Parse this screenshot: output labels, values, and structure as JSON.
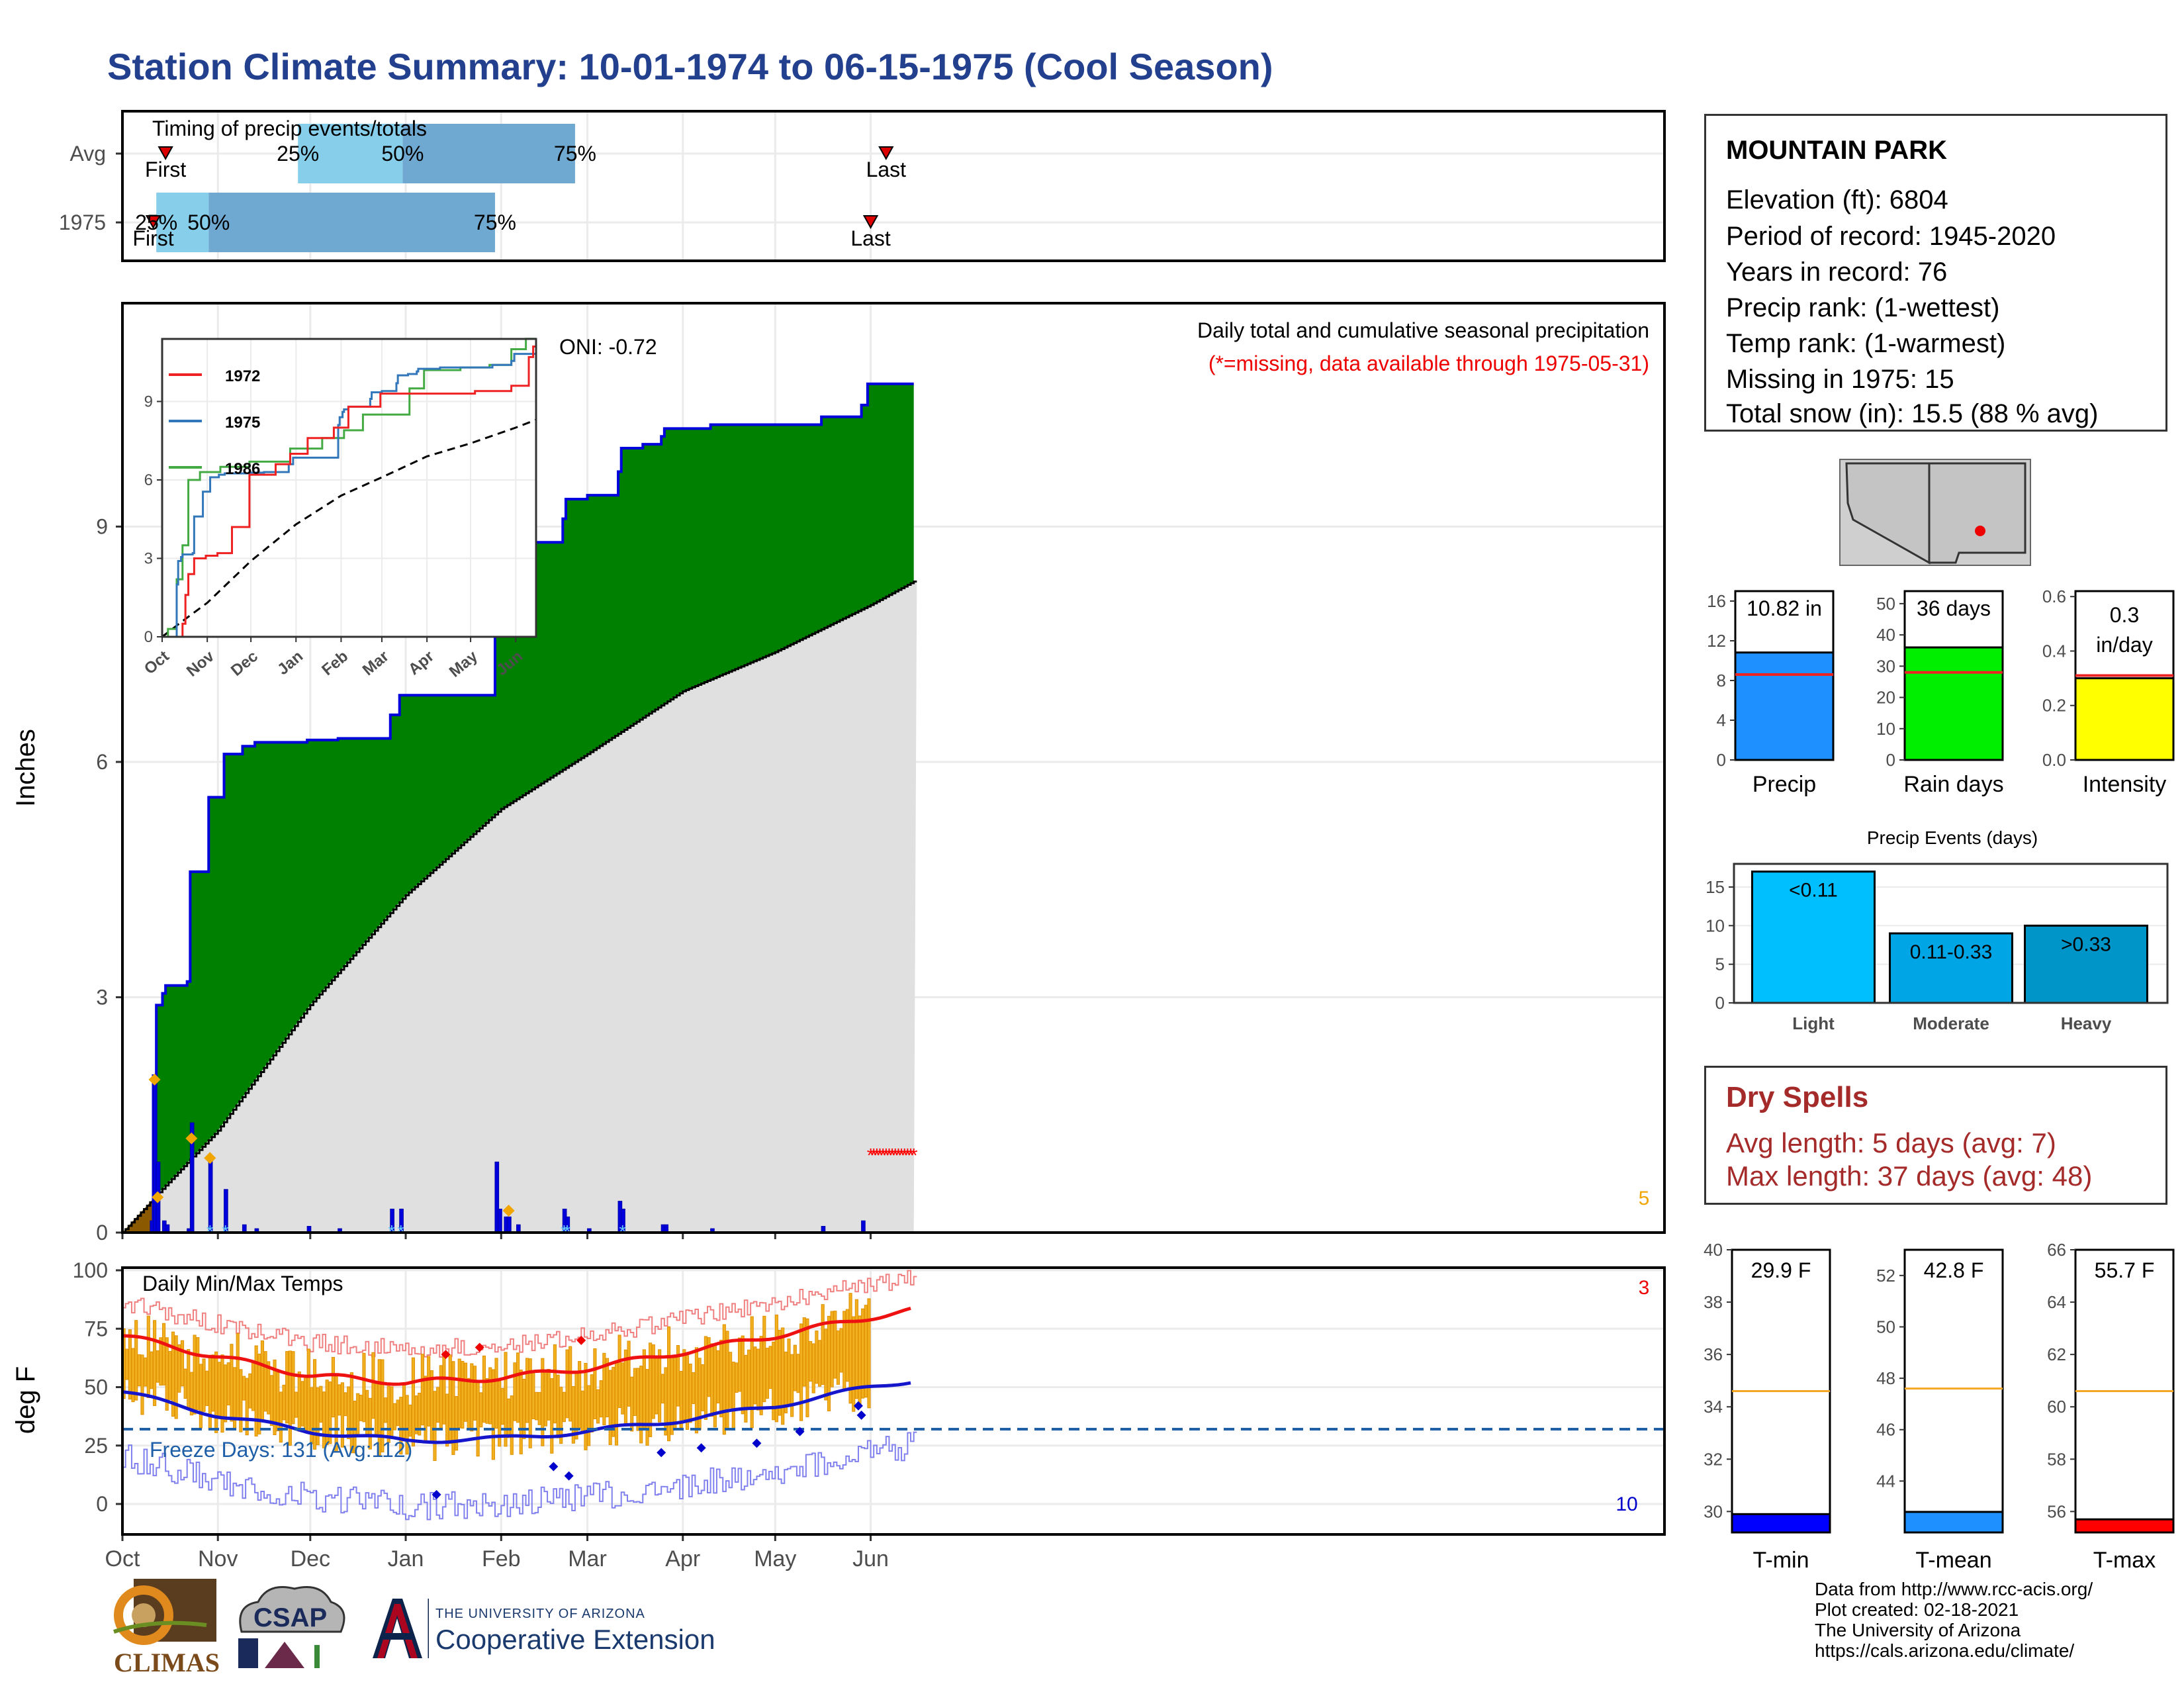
{
  "page_title": "Station Climate Summary: 10-01-1974 to 06-15-1975 (Cool Season)",
  "station": {
    "name": "MOUNTAIN PARK",
    "lines": [
      "Elevation (ft): 6804",
      "Period of record: 1945-2020",
      "Years in record: 76",
      "Precip rank:  (1-wettest)",
      "Temp rank:  (1-warmest)",
      "Missing in 1975: 15",
      "Total snow (in): 15.5 (88 % avg)"
    ]
  },
  "dry_spells": {
    "title": "Dry Spells",
    "avg": "Avg length: 5 days (avg: 7)",
    "max": "Max length: 37 days (avg: 48)"
  },
  "credits": [
    "Data from http://www.rcc-acis.org/",
    "Plot created: 02-18-2021",
    "The University of Arizona",
    "https://cals.arizona.edu/climate/"
  ],
  "logos": {
    "climas": "CLIMAS",
    "csap": "CSAP",
    "ua_top": "THE UNIVERSITY OF ARIZONA",
    "ua_main": "Cooperative Extension"
  },
  "colors": {
    "title": "#23408f",
    "green": "#008000",
    "blue_line": "#0000dd",
    "gray_fill": "#e0e0e0",
    "brown": "#8b5a00",
    "orange": "#f0a500",
    "tmax": "#ee1111",
    "tmin": "#1515cc",
    "light_blue": "#87ceeb",
    "mid_blue": "#6fa8d0",
    "missing_red": "#ff0000"
  },
  "chart_data": [
    {
      "id": "timing",
      "type": "bar",
      "title": "Timing of precip events/totals",
      "rows": [
        {
          "label": "Avg",
          "first": "1974-10-15",
          "q25": "1974-11-27",
          "q50": "1974-12-31",
          "q75": "1975-02-25",
          "last": "1975-06-06",
          "first_text": "First",
          "q25_text": "25%",
          "q50_text": "50%",
          "q75_text": "75%",
          "last_text": "Last"
        },
        {
          "label": "1975",
          "first": "1974-10-11",
          "q25": "1974-10-12",
          "q50": "1974-10-29",
          "q75": "1975-01-30",
          "last": "1975-06-01",
          "first_text": "First",
          "q25_text": "25%",
          "q50_text": "50%",
          "q75_text": "75%",
          "last_text": "Last"
        }
      ]
    },
    {
      "id": "precip",
      "type": "area",
      "title": "Daily total and cumulative seasonal precipitation",
      "subtitle": "(*=missing, data available through 1975-05-31)",
      "oni": "ONI: -0.72",
      "ylabel": "Inches",
      "ylim": [
        0,
        11.5
      ],
      "yticks": [
        0,
        3,
        6,
        9
      ],
      "xlim": [
        "1974-10-01",
        "1975-06-15"
      ],
      "x_ticks": [
        "Oct",
        "Nov",
        "Dec",
        "Jan",
        "Feb",
        "Mar",
        "Apr",
        "May",
        "Jun"
      ],
      "x_tick_dates": [
        "1974-10-01",
        "1974-11-01",
        "1974-12-01",
        "1975-01-01",
        "1975-02-01",
        "1975-03-01",
        "1975-04-01",
        "1975-05-01",
        "1975-06-01"
      ],
      "cumulative_steps": [
        [
          "1974-10-01",
          0.0
        ],
        [
          "1974-10-11",
          2.0
        ],
        [
          "1974-10-12",
          2.9
        ],
        [
          "1974-10-14",
          3.05
        ],
        [
          "1974-10-15",
          3.15
        ],
        [
          "1974-10-22",
          3.2
        ],
        [
          "1974-10-23",
          4.6
        ],
        [
          "1974-10-29",
          5.55
        ],
        [
          "1974-11-03",
          6.1
        ],
        [
          "1974-11-09",
          6.2
        ],
        [
          "1974-11-13",
          6.25
        ],
        [
          "1974-11-30",
          6.28
        ],
        [
          "1974-12-10",
          6.3
        ],
        [
          "1974-12-27",
          6.6
        ],
        [
          "1974-12-30",
          6.85
        ],
        [
          "1975-01-30",
          8.1
        ],
        [
          "1975-01-31",
          8.4
        ],
        [
          "1975-02-02",
          8.6
        ],
        [
          "1975-02-03",
          8.7
        ],
        [
          "1975-02-06",
          8.8
        ],
        [
          "1975-02-21",
          9.1
        ],
        [
          "1975-02-22",
          9.35
        ],
        [
          "1975-03-01",
          9.4
        ],
        [
          "1975-03-11",
          9.7
        ],
        [
          "1975-03-12",
          10.0
        ],
        [
          "1975-03-19",
          10.05
        ],
        [
          "1975-03-25",
          10.15
        ],
        [
          "1975-03-26",
          10.25
        ],
        [
          "1975-04-10",
          10.3
        ],
        [
          "1975-05-16",
          10.4
        ],
        [
          "1975-05-29",
          10.55
        ],
        [
          "1975-05-31",
          10.82
        ]
      ],
      "avg_cumulative": [
        [
          "1974-10-01",
          0.0
        ],
        [
          "1974-10-15",
          0.6
        ],
        [
          "1974-11-01",
          1.3
        ],
        [
          "1974-12-01",
          2.9
        ],
        [
          "1975-01-01",
          4.3
        ],
        [
          "1975-02-01",
          5.4
        ],
        [
          "1975-03-01",
          6.1
        ],
        [
          "1975-04-01",
          6.9
        ],
        [
          "1975-05-01",
          7.4
        ],
        [
          "1975-06-01",
          8.0
        ],
        [
          "1975-06-15",
          8.3
        ]
      ],
      "daily_bars": [
        [
          "1974-10-10",
          0.15
        ],
        [
          "1974-10-11",
          2.0
        ],
        [
          "1974-10-12",
          0.9
        ],
        [
          "1974-10-14",
          0.15
        ],
        [
          "1974-10-15",
          0.1
        ],
        [
          "1974-10-22",
          0.05
        ],
        [
          "1974-10-23",
          1.4
        ],
        [
          "1974-10-29",
          0.95
        ],
        [
          "1974-11-03",
          0.55
        ],
        [
          "1974-11-09",
          0.1
        ],
        [
          "1974-11-13",
          0.05
        ],
        [
          "1974-11-30",
          0.08
        ],
        [
          "1974-12-10",
          0.05
        ],
        [
          "1974-12-27",
          0.3
        ],
        [
          "1974-12-30",
          0.3
        ],
        [
          "1975-01-30",
          0.9
        ],
        [
          "1975-01-31",
          0.3
        ],
        [
          "1975-02-02",
          0.2
        ],
        [
          "1975-02-03",
          0.2
        ],
        [
          "1975-02-06",
          0.1
        ],
        [
          "1975-02-21",
          0.3
        ],
        [
          "1975-02-22",
          0.2
        ],
        [
          "1975-03-01",
          0.05
        ],
        [
          "1975-03-11",
          0.4
        ],
        [
          "1975-03-12",
          0.3
        ],
        [
          "1975-03-25",
          0.1
        ],
        [
          "1975-03-26",
          0.1
        ],
        [
          "1975-04-10",
          0.05
        ],
        [
          "1975-05-16",
          0.08
        ],
        [
          "1975-05-29",
          0.15
        ]
      ],
      "snow_markers": [
        [
          "1974-10-11",
          1.95
        ],
        [
          "1974-10-12",
          0.45
        ],
        [
          "1974-10-23",
          1.2
        ],
        [
          "1974-10-29",
          0.95
        ],
        [
          "1975-02-03",
          0.28
        ]
      ],
      "missing_count": "5",
      "inset": {
        "legend": [
          "1972",
          "1975",
          "1986"
        ],
        "colors": [
          "#ee2222",
          "#3377bb",
          "#44aa44"
        ],
        "yticks": [
          0,
          3,
          6,
          9
        ],
        "months": [
          "Oct",
          "Nov",
          "Dec",
          "Jan",
          "Feb",
          "Mar",
          "Apr",
          "May",
          "Jun"
        ]
      }
    },
    {
      "id": "temps",
      "type": "bar",
      "title": "Daily Min/Max Temps",
      "ylabel": "deg F",
      "ylim": [
        -10,
        100
      ],
      "yticks": [
        0,
        25,
        50,
        75,
        100
      ],
      "freeze_line": 32,
      "freeze_text": "Freeze Days: 131 (Avg:112)",
      "record_high_count": "3",
      "record_low_count": "10",
      "avg_tmax": [
        [
          "1974-10-01",
          72
        ],
        [
          "1974-11-01",
          63
        ],
        [
          "1974-12-01",
          55
        ],
        [
          "1975-01-01",
          52
        ],
        [
          "1975-02-01",
          54
        ],
        [
          "1975-03-01",
          58
        ],
        [
          "1975-04-01",
          65
        ],
        [
          "1975-05-01",
          72
        ],
        [
          "1975-06-01",
          80
        ],
        [
          "1975-06-15",
          83
        ]
      ],
      "avg_tmin": [
        [
          "1974-10-01",
          48
        ],
        [
          "1974-11-01",
          38
        ],
        [
          "1974-12-01",
          31
        ],
        [
          "1975-01-01",
          27
        ],
        [
          "1975-02-01",
          28
        ],
        [
          "1975-03-01",
          31
        ],
        [
          "1975-04-01",
          36
        ],
        [
          "1975-05-01",
          42
        ],
        [
          "1975-06-01",
          50
        ],
        [
          "1975-06-15",
          53
        ]
      ]
    },
    {
      "id": "precip_bars",
      "type": "bar",
      "charts": [
        {
          "label": "Precip",
          "value": 10.82,
          "text": "10.82 in",
          "avg": 8.6,
          "ylim": [
            0,
            17
          ],
          "ticks": [
            0,
            4,
            8,
            12,
            16
          ],
          "color": "#1e90ff"
        },
        {
          "label": "Rain days",
          "value": 36,
          "text": "36 days",
          "avg": 28,
          "ylim": [
            0,
            54
          ],
          "ticks": [
            0,
            10,
            20,
            30,
            40,
            50
          ],
          "color": "#00ee00"
        },
        {
          "label": "Intensity",
          "value": 0.3,
          "text": "0.3",
          "text2": "in/day",
          "avg": 0.31,
          "ylim": [
            0,
            0.62
          ],
          "ticks": [
            0.0,
            0.2,
            0.4,
            0.6
          ],
          "color": "#ffff00"
        }
      ]
    },
    {
      "id": "events",
      "type": "bar",
      "title": "Precip Events (days)",
      "categories": [
        "Light",
        "Moderate",
        "Heavy"
      ],
      "bar_labels": [
        "<0.11",
        "0.11-0.33",
        ">0.33"
      ],
      "values": [
        17,
        9,
        10
      ],
      "yticks": [
        0,
        5,
        10,
        15
      ],
      "ylim": [
        0,
        18
      ],
      "colors": [
        "#00bfff",
        "#00a5e6",
        "#0095c8"
      ]
    },
    {
      "id": "temp_bars",
      "type": "bar",
      "charts": [
        {
          "label": "T-min",
          "value": 29.9,
          "text": "29.9 F",
          "avg": 34.6,
          "ylim": [
            29.2,
            40
          ],
          "ticks": [
            30,
            32,
            34,
            36,
            38,
            40
          ],
          "color": "#0000ff"
        },
        {
          "label": "T-mean",
          "value": 42.8,
          "text": "42.8 F",
          "avg": 47.6,
          "ylim": [
            42.0,
            53
          ],
          "ticks": [
            44,
            46,
            48,
            50,
            52
          ],
          "color": "#1e90ff"
        },
        {
          "label": "T-max",
          "value": 55.7,
          "text": "55.7 F",
          "avg": 60.6,
          "ylim": [
            55.2,
            66
          ],
          "ticks": [
            56,
            58,
            60,
            62,
            64,
            66
          ],
          "color": "#ff0000"
        }
      ]
    }
  ]
}
